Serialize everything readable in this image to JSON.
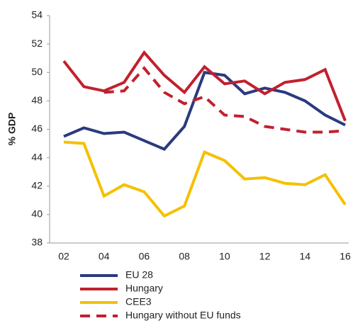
{
  "chart_data": {
    "type": "line",
    "y_label": "% GDP",
    "categories": [
      "02",
      null,
      "04",
      null,
      "06",
      null,
      "08",
      null,
      "10",
      null,
      "12",
      null,
      "14",
      null,
      "16"
    ],
    "ylim": [
      38,
      54
    ],
    "yticks": [
      38,
      40,
      42,
      44,
      46,
      48,
      50,
      52,
      54
    ],
    "grid": false,
    "series": [
      {
        "name": "EU 28",
        "color": "#2b3a7e",
        "line_style": "solid",
        "values": [
          45.5,
          46.1,
          45.7,
          45.8,
          45.2,
          44.6,
          46.2,
          50.0,
          49.8,
          48.5,
          48.9,
          48.6,
          48.0,
          47.0,
          46.3
        ]
      },
      {
        "name": "Hungary",
        "color": "#c1202e",
        "line_style": "solid",
        "values": [
          50.8,
          49.0,
          48.7,
          49.3,
          51.4,
          49.8,
          48.6,
          50.4,
          49.2,
          49.4,
          48.5,
          49.3,
          49.5,
          50.2,
          46.6
        ]
      },
      {
        "name": "CEE3",
        "color": "#f5c000",
        "line_style": "solid",
        "values": [
          45.1,
          45.0,
          41.3,
          42.1,
          41.6,
          39.9,
          40.6,
          44.4,
          43.8,
          42.5,
          42.6,
          42.2,
          42.1,
          42.8,
          40.7
        ]
      },
      {
        "name": "Hungary without EU funds",
        "color": "#c1202e",
        "line_style": "dashed",
        "values": [
          null,
          null,
          48.6,
          48.7,
          50.3,
          48.6,
          47.8,
          48.3,
          47.0,
          46.9,
          46.2,
          46.0,
          45.8,
          45.8,
          45.9
        ]
      }
    ]
  }
}
